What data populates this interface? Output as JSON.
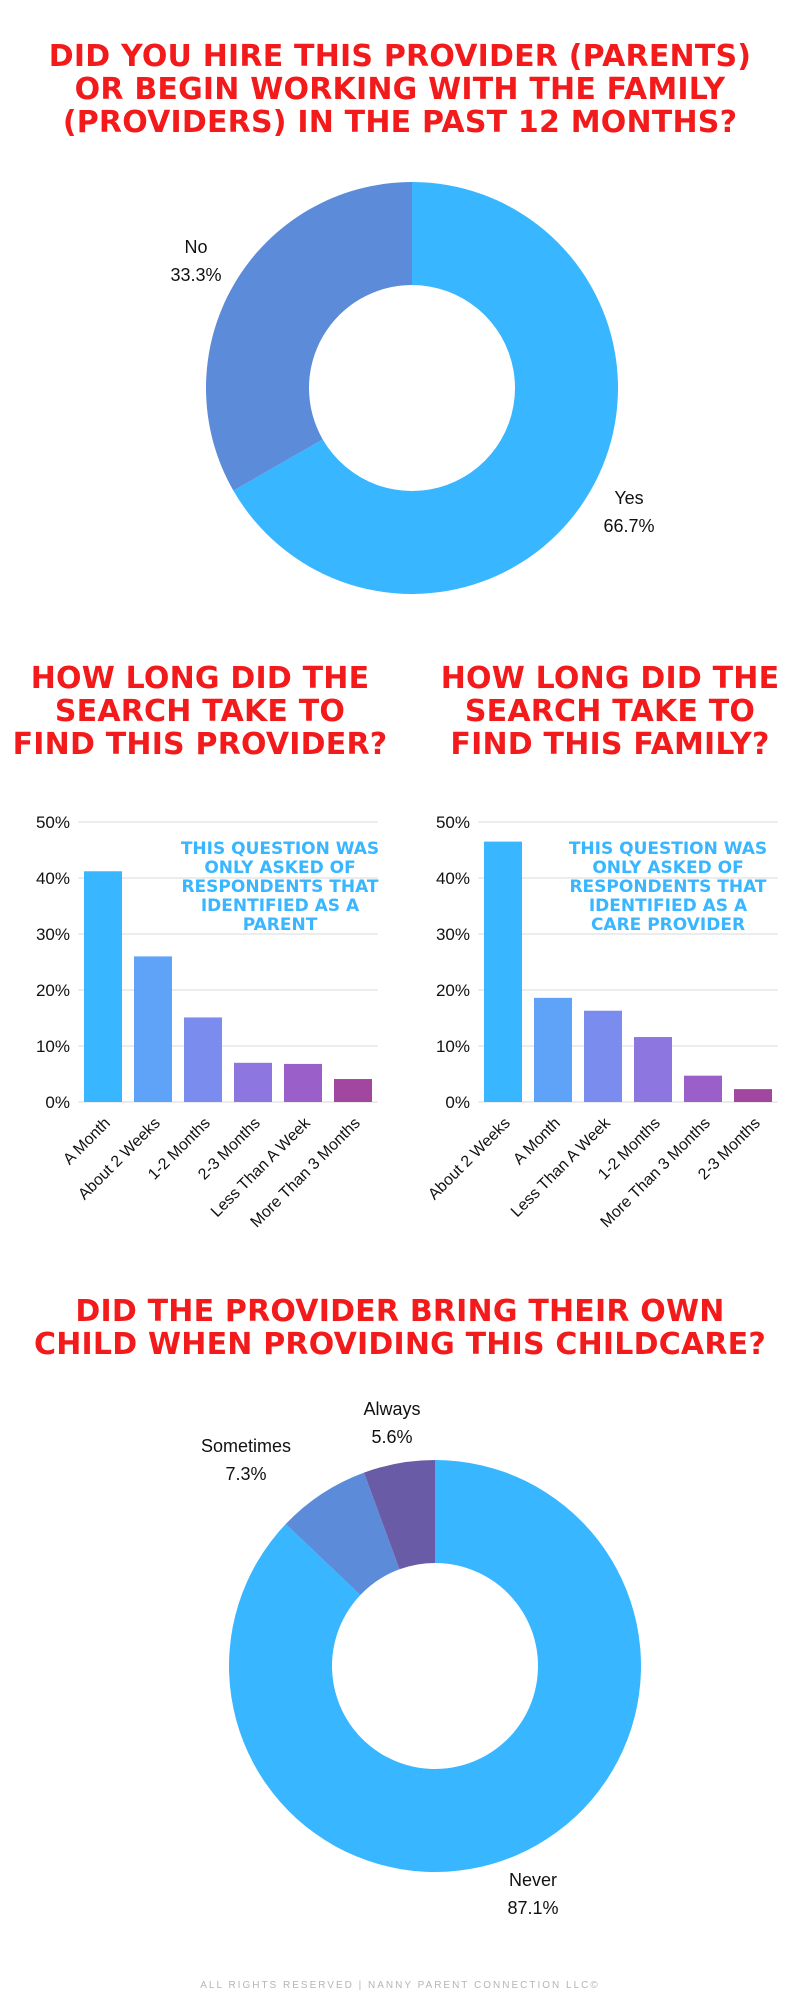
{
  "sections": {
    "hired": {
      "title": "DID YOU HIRE THIS PROVIDER (PARENTS) OR BEGIN WORKING WITH THE FAMILY (PROVIDERS) IN THE PAST 12 MONTHS?"
    },
    "search_provider": {
      "title": "HOW LONG DID THE SEARCH TAKE TO FIND THIS PROVIDER?",
      "note": "THIS QUESTION WAS ONLY ASKED OF RESPONDENTS THAT IDENTIFIED AS A PARENT"
    },
    "search_family": {
      "title": "HOW LONG DID THE SEARCH TAKE TO FIND THIS FAMILY?",
      "note": "THIS QUESTION WAS ONLY ASKED OF RESPONDENTS THAT IDENTIFIED AS A CARE PROVIDER"
    },
    "own_child": {
      "title": "DID THE PROVIDER BRING THEIR OWN CHILD WHEN PROVIDING THIS CHILDCARE?"
    }
  },
  "footer": "ALL RIGHTS RESERVED | NANNY PARENT CONNECTION LLC©",
  "chart_data": [
    {
      "type": "pie",
      "donut": true,
      "labels": [
        "Yes",
        "No"
      ],
      "values": [
        66.7,
        33.3
      ],
      "value_labels": [
        "66.7%",
        "33.3%"
      ],
      "colors": [
        "#38b6ff",
        "#5b8bd9"
      ]
    },
    {
      "type": "bar",
      "categories": [
        "A Month",
        "About 2 Weeks",
        "1-2 Months",
        "2-3 Months",
        "Less Than A Week",
        "More Than 3 Months"
      ],
      "values": [
        41.2,
        26.0,
        15.1,
        7.0,
        6.8,
        4.1
      ],
      "colors": [
        "#38b6ff",
        "#5ea3f7",
        "#7a8ced",
        "#8d76e0",
        "#9a5fc9",
        "#a1479f"
      ],
      "ylim": [
        0,
        50
      ],
      "yticks": [
        "0%",
        "10%",
        "20%",
        "30%",
        "40%",
        "50%"
      ],
      "grid": true
    },
    {
      "type": "bar",
      "categories": [
        "About 2 Weeks",
        "A Month",
        "Less Than A Week",
        "1-2 Months",
        "More Than 3 Months",
        "2-3 Months"
      ],
      "values": [
        46.5,
        18.6,
        16.3,
        11.6,
        4.7,
        2.3
      ],
      "colors": [
        "#38b6ff",
        "#5ea3f7",
        "#7a8ced",
        "#8d76e0",
        "#9a5fc9",
        "#a1479f"
      ],
      "ylim": [
        0,
        50
      ],
      "yticks": [
        "0%",
        "10%",
        "20%",
        "30%",
        "40%",
        "50%"
      ],
      "grid": true
    },
    {
      "type": "pie",
      "donut": true,
      "labels": [
        "Never",
        "Sometimes",
        "Always"
      ],
      "values": [
        87.1,
        7.3,
        5.6
      ],
      "value_labels": [
        "87.1%",
        "7.3%",
        "5.6%"
      ],
      "colors": [
        "#38b6ff",
        "#5b8bd9",
        "#6a5ba6"
      ]
    }
  ]
}
